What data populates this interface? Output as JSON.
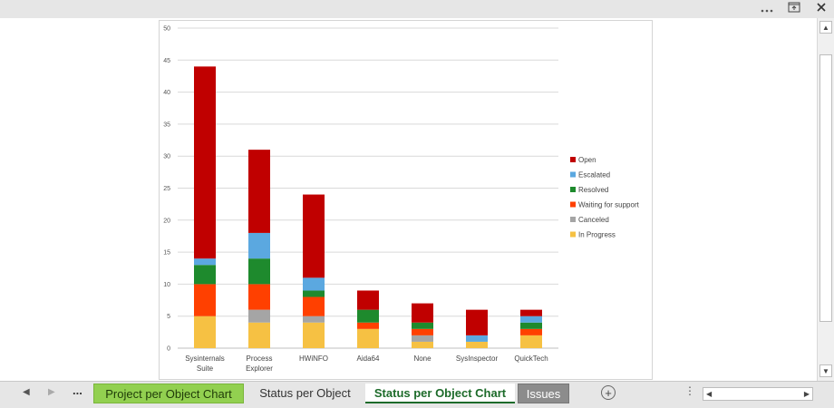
{
  "window": {
    "more_icon": "ellipsis-icon",
    "restore_icon": "restore-icon",
    "close_icon": "close-icon"
  },
  "chart_data": {
    "type": "bar",
    "stacked": true,
    "categories": [
      "Sysinternals Suite",
      "Process Explorer",
      "HWiNFO",
      "Aida64",
      "None",
      "SysInspector",
      "QuickTech"
    ],
    "series": [
      {
        "name": "In Progress",
        "color": "#f6c143",
        "values": [
          5,
          4,
          4,
          3,
          1,
          1,
          2
        ]
      },
      {
        "name": "Canceled",
        "color": "#a5a5a5",
        "values": [
          0,
          2,
          1,
          0,
          1,
          0,
          0
        ]
      },
      {
        "name": "Waiting for support",
        "color": "#ff4000",
        "values": [
          5,
          4,
          3,
          1,
          1,
          0,
          1
        ]
      },
      {
        "name": "Resolved",
        "color": "#1e8a2d",
        "values": [
          3,
          4,
          1,
          2,
          1,
          0,
          1
        ]
      },
      {
        "name": "Escalated",
        "color": "#5ba8e0",
        "values": [
          1,
          4,
          2,
          0,
          0,
          1,
          1
        ]
      },
      {
        "name": "Open",
        "color": "#c00000",
        "values": [
          30,
          13,
          13,
          3,
          3,
          4,
          1
        ]
      }
    ],
    "legend_order": [
      "Open",
      "Escalated",
      "Resolved",
      "Waiting for support",
      "Canceled",
      "In Progress"
    ],
    "ylim": [
      0,
      50
    ],
    "yticks": [
      0,
      5,
      10,
      15,
      20,
      25,
      30,
      35,
      40,
      45,
      50
    ],
    "grid": true,
    "legend_position": "right",
    "xlabel": "",
    "ylabel": ""
  },
  "tabs": {
    "nav_prev": "◀",
    "nav_next": "▶",
    "more": "...",
    "items": [
      {
        "label": "Project per Object Chart"
      },
      {
        "label": "Status per Object"
      },
      {
        "label": "Status per Object Chart"
      },
      {
        "label": "Issues"
      }
    ],
    "add": "+",
    "options": "⋮"
  },
  "scroll": {
    "up": "▲",
    "down": "▼",
    "left": "◀",
    "right": "▶"
  }
}
